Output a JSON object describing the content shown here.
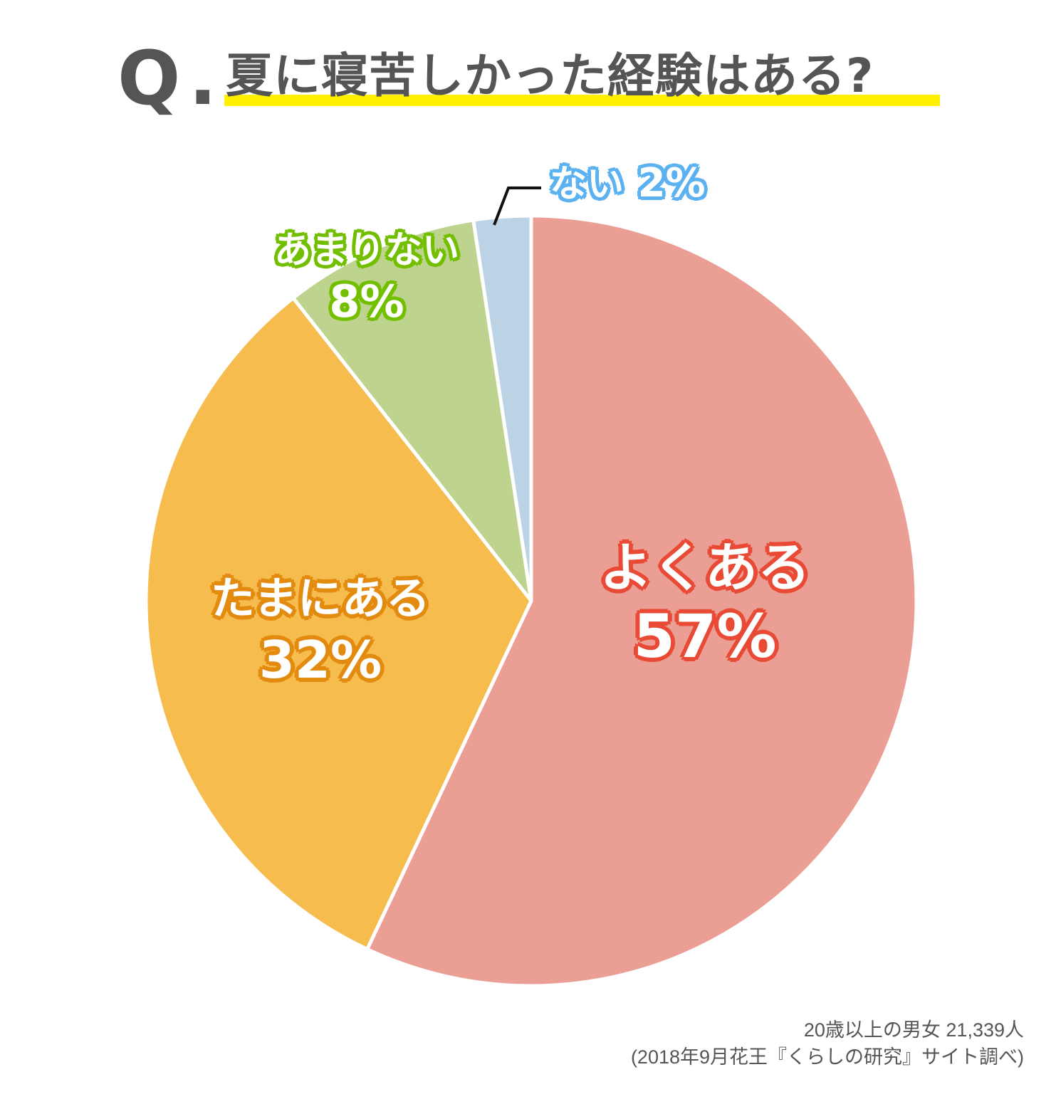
{
  "title": {
    "q_mark": "Q",
    "q_dot": ".",
    "text": "夏に寝苦しかった経験はある?",
    "underline_color": "#fff100"
  },
  "chart_data": {
    "type": "pie",
    "title": "Q. 夏に寝苦しかった経験はある?",
    "start_angle": "12 o'clock",
    "direction": "clockwise",
    "categories": [
      "よくある",
      "たまにある",
      "あまりない",
      "ない"
    ],
    "values": [
      57,
      32,
      8,
      2
    ],
    "unit": "%",
    "colors": [
      "#eb9e94",
      "#f6bc4e",
      "#bdd38e",
      "#bcd3e6"
    ],
    "label_colors": [
      "#e84a35",
      "#e38b0f",
      "#72bf00",
      "#5cb2f0"
    ],
    "annotations": [
      "ない 2% (leader line)"
    ]
  },
  "labels": [
    {
      "name": "よくある",
      "value": "57%"
    },
    {
      "name": "たまにある",
      "value": "32%"
    },
    {
      "name": "あまりない",
      "value": "8%"
    },
    {
      "name": "ない",
      "value": "2%"
    }
  ],
  "source": {
    "line1": "20歳以上の男女 21,339人",
    "line2": "(2018年9月花王『くらしの研究』サイト調べ)"
  }
}
